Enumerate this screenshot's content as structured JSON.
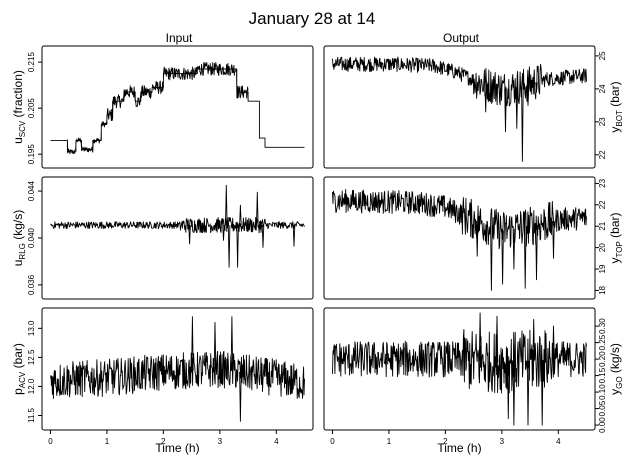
{
  "title": "January 28 at 14",
  "columns": [
    "Input",
    "Output"
  ],
  "chart_data": [
    {
      "type": "line",
      "column": "Input",
      "ylabel": "u_SCV (fraction)",
      "ylabel_main": "u",
      "ylabel_sub": "SCV",
      "ylabel_unit": " (fraction)",
      "yticks": [
        "0.195",
        "0.205",
        "0.215"
      ],
      "ylim": [
        0.192,
        0.2185
      ],
      "xlabel": "",
      "xticks": [],
      "xlim": [
        -0.15,
        4.65
      ],
      "noise": 0.0012,
      "spikes": [],
      "x": [
        0.0,
        0.3,
        0.3,
        0.45,
        0.45,
        0.55,
        0.55,
        0.75,
        0.75,
        0.9,
        0.9,
        1.0,
        1.0,
        1.1,
        1.1,
        1.3,
        1.3,
        1.5,
        1.5,
        1.6,
        1.6,
        1.8,
        1.8,
        2.0,
        2.0,
        2.3,
        2.3,
        2.6,
        2.6,
        2.9,
        2.9,
        3.3,
        3.3,
        3.5,
        3.5,
        3.7,
        3.7,
        3.8,
        3.8,
        4.5
      ],
      "y": [
        0.198,
        0.198,
        0.1955,
        0.1955,
        0.198,
        0.198,
        0.196,
        0.196,
        0.198,
        0.198,
        0.2015,
        0.2015,
        0.2035,
        0.2035,
        0.2065,
        0.2065,
        0.2085,
        0.2085,
        0.2065,
        0.2065,
        0.2085,
        0.2085,
        0.2095,
        0.2095,
        0.2125,
        0.2125,
        0.2125,
        0.2125,
        0.2135,
        0.2135,
        0.2135,
        0.2135,
        0.2085,
        0.2085,
        0.2065,
        0.2065,
        0.1985,
        0.1985,
        0.1965,
        0.1965
      ]
    },
    {
      "type": "line",
      "column": "Output",
      "ylabel": "y_BOT (bar)",
      "ylabel_main": "y",
      "ylabel_sub": "BOT",
      "ylabel_unit": " (bar)",
      "yticks": [
        "22",
        "23",
        "24",
        "25"
      ],
      "ylim": [
        21.6,
        25.3
      ],
      "xlabel": "",
      "xticks": [],
      "xlim": [
        -0.15,
        4.65
      ],
      "noise": 0.25,
      "spikes": [
        [
          2.7,
          23.3
        ],
        [
          2.95,
          23.6
        ],
        [
          3.05,
          22.7
        ],
        [
          3.25,
          22.8
        ],
        [
          3.35,
          21.8
        ],
        [
          3.45,
          23.5
        ],
        [
          3.6,
          23.9
        ]
      ],
      "x": [
        0.0,
        1.0,
        1.8,
        2.2,
        2.6,
        3.0,
        3.4,
        3.8,
        4.5
      ],
      "y": [
        24.75,
        24.75,
        24.7,
        24.5,
        24.2,
        24.0,
        24.1,
        24.3,
        24.4
      ]
    },
    {
      "type": "line",
      "column": "Input",
      "ylabel": "u_RLG (kg/s)",
      "ylabel_main": "u",
      "ylabel_sub": "RLG",
      "ylabel_unit": " (kg/s)",
      "yticks": [
        "0.036",
        "0.040",
        "0.044"
      ],
      "ylim": [
        0.0348,
        0.0452
      ],
      "xlabel": "",
      "xticks": [],
      "xlim": [
        -0.15,
        4.65
      ],
      "noise": 0.0003,
      "spikes": [
        [
          2.45,
          0.0395
        ],
        [
          3.05,
          0.0398
        ],
        [
          3.1,
          0.0445
        ],
        [
          3.15,
          0.0375
        ],
        [
          3.3,
          0.0375
        ],
        [
          3.35,
          0.0428
        ],
        [
          3.65,
          0.0439
        ],
        [
          3.75,
          0.0392
        ],
        [
          4.3,
          0.0393
        ]
      ],
      "x": [
        0.0,
        4.5
      ],
      "y": [
        0.0411,
        0.0411
      ]
    },
    {
      "type": "line",
      "column": "Output",
      "ylabel": "y_TOP (bar)",
      "ylabel_main": "y",
      "ylabel_sub": "TOP",
      "ylabel_unit": " (bar)",
      "yticks": [
        "18",
        "19",
        "20",
        "21",
        "22",
        "23"
      ],
      "ylim": [
        17.6,
        23.3
      ],
      "xlabel": "",
      "xticks": [],
      "xlim": [
        -0.15,
        4.65
      ],
      "noise": 0.55,
      "spikes": [
        [
          2.55,
          19.6
        ],
        [
          2.8,
          18.0
        ],
        [
          3.0,
          18.3
        ],
        [
          3.2,
          19.0
        ],
        [
          3.4,
          18.1
        ],
        [
          3.6,
          18.5
        ],
        [
          3.9,
          19.5
        ]
      ],
      "x": [
        0.0,
        1.5,
        2.0,
        2.5,
        3.0,
        3.5,
        4.0,
        4.5
      ],
      "y": [
        22.2,
        22.1,
        21.9,
        21.3,
        20.8,
        21.0,
        21.3,
        21.4
      ]
    },
    {
      "type": "line",
      "column": "Input",
      "ylabel": "p_ACV (bar)",
      "ylabel_main": "p",
      "ylabel_sub": "ACV",
      "ylabel_unit": " (bar)",
      "yticks": [
        "11.5",
        "12.0",
        "12.5",
        "13.0"
      ],
      "ylim": [
        11.25,
        13.35
      ],
      "xlabel": "Time (h)",
      "xticks": [
        "0",
        "1",
        "2",
        "3",
        "4"
      ],
      "xlim": [
        -0.15,
        4.65
      ],
      "noise": 0.32,
      "spikes": [
        [
          2.5,
          13.2
        ],
        [
          2.9,
          13.1
        ],
        [
          3.2,
          13.2
        ],
        [
          3.35,
          11.4
        ]
      ],
      "x": [
        0.0,
        1.0,
        2.0,
        3.0,
        4.0,
        4.5
      ],
      "y": [
        12.1,
        12.15,
        12.25,
        12.3,
        12.15,
        12.05
      ]
    },
    {
      "type": "line",
      "column": "Output",
      "ylabel": "y_GO (kg/s)",
      "ylabel_main": "y",
      "ylabel_sub": "GO",
      "ylabel_unit": " (kg/s)",
      "yticks": [
        "0.00",
        "0.05",
        "0.10",
        "0.15",
        "0.20",
        "0.25",
        "0.30"
      ],
      "ylim": [
        -0.015,
        0.355
      ],
      "xlabel": "Time (h)",
      "xticks": [
        "0",
        "1",
        "2",
        "3",
        "4"
      ],
      "xlim": [
        -0.15,
        4.65
      ],
      "noise": 0.055,
      "spikes": [
        [
          2.6,
          0.34
        ],
        [
          2.9,
          0.33
        ],
        [
          3.1,
          0.02
        ],
        [
          3.2,
          0.0
        ],
        [
          3.45,
          0.0
        ],
        [
          3.55,
          0.32
        ],
        [
          3.7,
          0.0
        ],
        [
          3.9,
          0.3
        ]
      ],
      "x": [
        0.0,
        2.0,
        3.0,
        4.0,
        4.5
      ],
      "y": [
        0.2,
        0.2,
        0.19,
        0.2,
        0.2
      ]
    }
  ]
}
